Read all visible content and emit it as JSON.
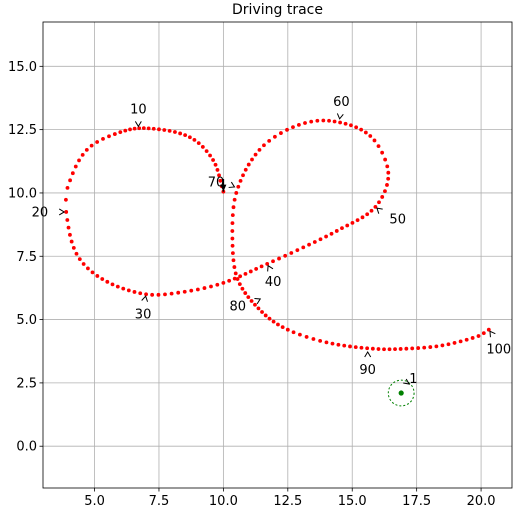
{
  "chart_data": {
    "type": "scatter",
    "title": "Driving trace",
    "xlabel": "",
    "ylabel": "",
    "xlim": [
      3.0,
      21.2
    ],
    "ylim": [
      -1.65,
      16.75
    ],
    "xticks": [
      5.0,
      7.5,
      10.0,
      12.5,
      15.0,
      17.5,
      20.0
    ],
    "xtick_labels": [
      "5.0",
      "7.5",
      "10.0",
      "12.5",
      "15.0",
      "17.5",
      "20.0"
    ],
    "yticks": [
      0.0,
      2.5,
      5.0,
      7.5,
      10.0,
      12.5,
      15.0
    ],
    "ytick_labels": [
      "0.0",
      "2.5",
      "5.0",
      "7.5",
      "10.0",
      "12.5",
      "15.0"
    ],
    "grid": true,
    "trace_color": "#ff0000",
    "trace_anchors": [
      {
        "i": 0,
        "x": 10.0,
        "y": 10.05
      },
      {
        "i": 3,
        "x": 9.6,
        "y": 11.3
      },
      {
        "i": 6,
        "x": 8.7,
        "y": 12.2
      },
      {
        "i": 10,
        "x": 7.1,
        "y": 12.55
      },
      {
        "i": 13,
        "x": 6.0,
        "y": 12.4
      },
      {
        "i": 16,
        "x": 4.7,
        "y": 11.7
      },
      {
        "i": 19,
        "x": 3.95,
        "y": 10.2
      },
      {
        "i": 20,
        "x": 3.9,
        "y": 9.25
      },
      {
        "i": 23,
        "x": 4.3,
        "y": 7.6
      },
      {
        "i": 26,
        "x": 5.3,
        "y": 6.6
      },
      {
        "i": 30,
        "x": 7.0,
        "y": 6.0
      },
      {
        "i": 33,
        "x": 8.5,
        "y": 6.1
      },
      {
        "i": 36,
        "x": 10.0,
        "y": 6.45
      },
      {
        "i": 40,
        "x": 11.7,
        "y": 7.2
      },
      {
        "i": 43,
        "x": 13.1,
        "y": 7.85
      },
      {
        "i": 46,
        "x": 14.4,
        "y": 8.5
      },
      {
        "i": 50,
        "x": 15.9,
        "y": 9.45
      },
      {
        "i": 53,
        "x": 16.4,
        "y": 10.8
      },
      {
        "i": 56,
        "x": 15.7,
        "y": 12.25
      },
      {
        "i": 60,
        "x": 14.1,
        "y": 12.85
      },
      {
        "i": 63,
        "x": 12.7,
        "y": 12.6
      },
      {
        "i": 66,
        "x": 11.4,
        "y": 11.7
      },
      {
        "i": 70,
        "x": 10.5,
        "y": 10.0
      },
      {
        "i": 73,
        "x": 10.35,
        "y": 8.2
      },
      {
        "i": 76,
        "x": 10.55,
        "y": 6.6
      },
      {
        "i": 80,
        "x": 11.5,
        "y": 5.3
      },
      {
        "i": 83,
        "x": 12.5,
        "y": 4.6
      },
      {
        "i": 86,
        "x": 14.0,
        "y": 4.1
      },
      {
        "i": 90,
        "x": 15.8,
        "y": 3.85
      },
      {
        "i": 93,
        "x": 17.1,
        "y": 3.85
      },
      {
        "i": 96,
        "x": 18.5,
        "y": 3.98
      },
      {
        "i": 99,
        "x": 19.9,
        "y": 4.35
      },
      {
        "i": 100,
        "x": 20.3,
        "y": 4.6
      }
    ],
    "annotations": [
      {
        "label": "10",
        "index": 10,
        "x": 6.7,
        "y": 12.55
      },
      {
        "label": "20",
        "index": 20,
        "x": 3.9,
        "y": 9.25
      },
      {
        "label": "30",
        "index": 30,
        "x": 7.0,
        "y": 6.0
      },
      {
        "label": "40",
        "index": 40,
        "x": 11.7,
        "y": 7.2
      },
      {
        "label": "50",
        "index": 50,
        "x": 15.9,
        "y": 9.45
      },
      {
        "label": "60",
        "index": 60,
        "x": 14.5,
        "y": 12.85
      },
      {
        "label": "70",
        "index": 70,
        "x": 10.5,
        "y": 10.2
      },
      {
        "label": "80",
        "index": 80,
        "x": 11.5,
        "y": 5.85
      },
      {
        "label": "90",
        "index": 90,
        "x": 15.6,
        "y": 3.8
      },
      {
        "label": "100",
        "index": 100,
        "x": 20.3,
        "y": 4.6
      }
    ],
    "start_arrow": {
      "from": {
        "x": 10.0,
        "y": 10.55
      },
      "to": {
        "x": 10.0,
        "y": 10.05
      }
    },
    "target": {
      "label": "1",
      "x": 16.9,
      "y": 2.1,
      "radius": 0.5,
      "color": "#008000"
    }
  }
}
